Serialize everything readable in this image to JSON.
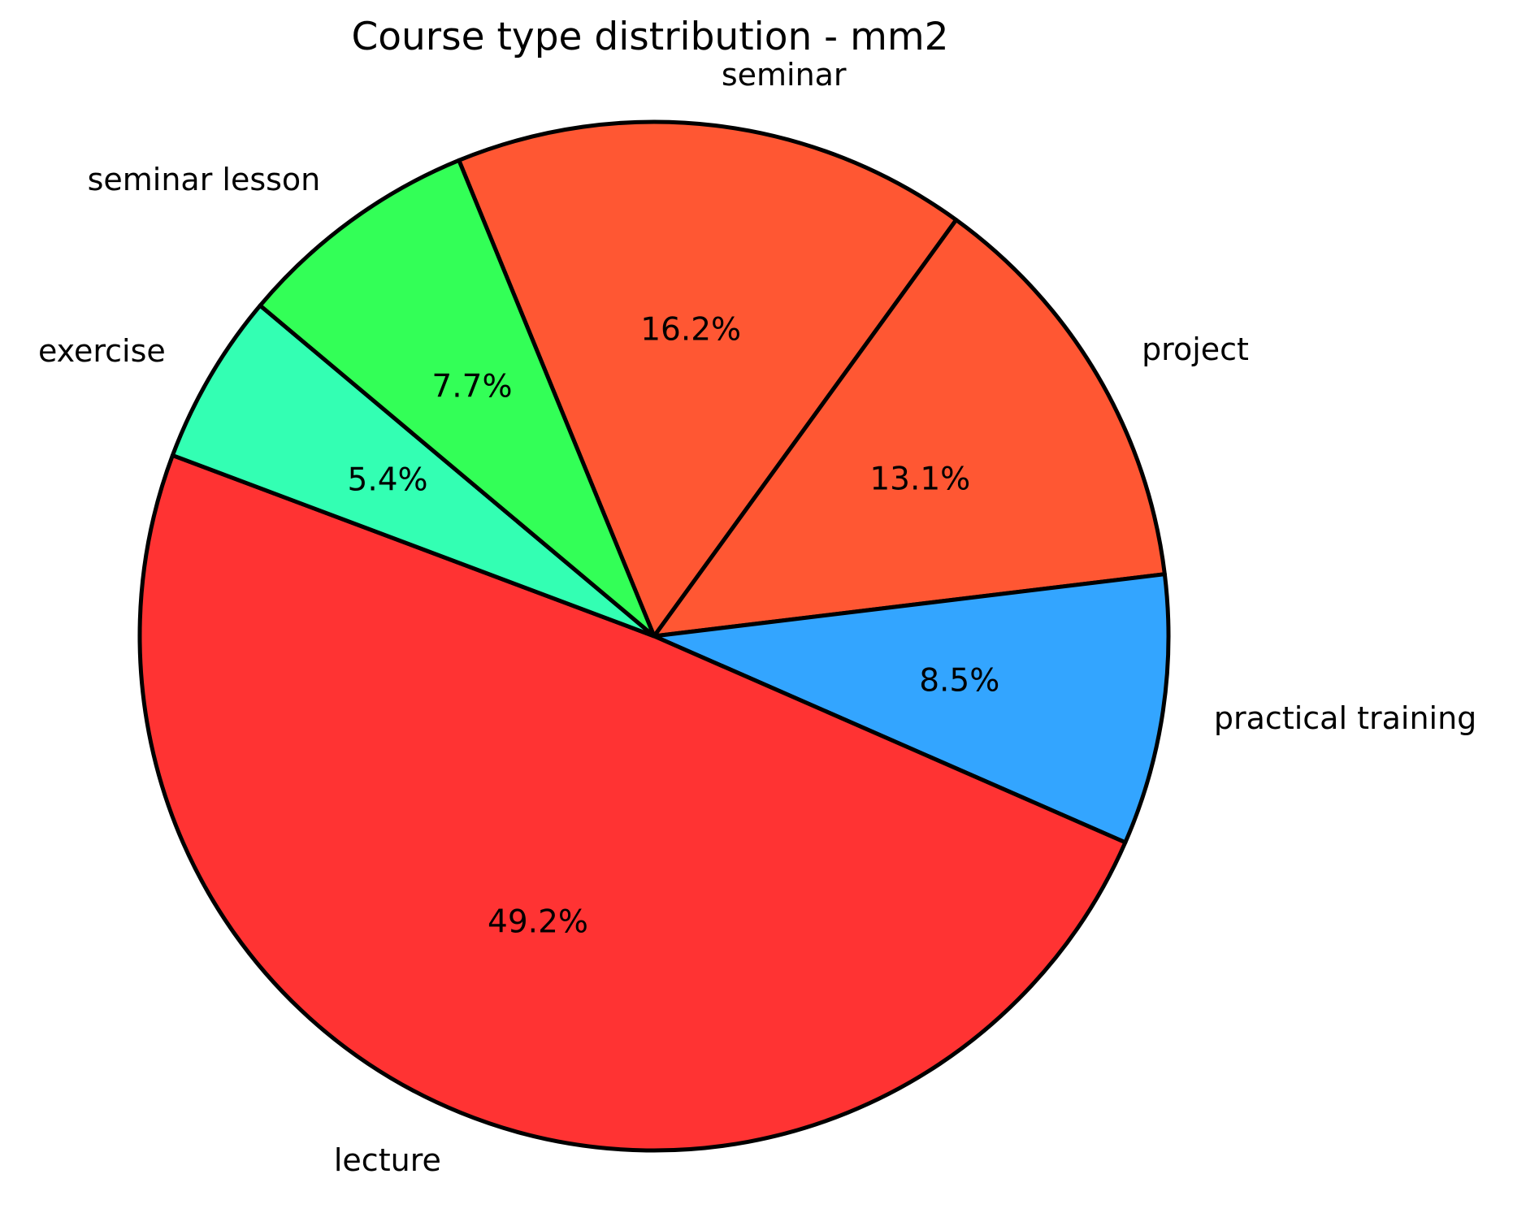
{
  "title": "Course type distribution - mm2",
  "chart_data": {
    "type": "pie",
    "title": "Course type distribution - mm2",
    "slices": [
      {
        "label": "seminar",
        "value": 16.2,
        "display": "16.2%",
        "color": "#FF5733"
      },
      {
        "label": "project",
        "value": 13.1,
        "display": "13.1%",
        "color": "#FF5733"
      },
      {
        "label": "practical training",
        "value": 8.5,
        "display": "8.5%",
        "color": "#33A5FF"
      },
      {
        "label": "lecture",
        "value": 49.2,
        "display": "49.2%",
        "color": "#FF3333"
      },
      {
        "label": "exercise",
        "value": 5.4,
        "display": "5.4%",
        "color": "#33FFB3"
      },
      {
        "label": "seminar lesson",
        "value": 7.7,
        "display": "7.7%",
        "color": "#33FF57"
      }
    ],
    "start_angle_deg": 112.3,
    "direction": "clockwise",
    "label_distance": 1.1,
    "pct_distance": 0.6,
    "edge_color": "#000000",
    "edge_width": 5,
    "legend": "none",
    "background": "#FFFFFF"
  }
}
